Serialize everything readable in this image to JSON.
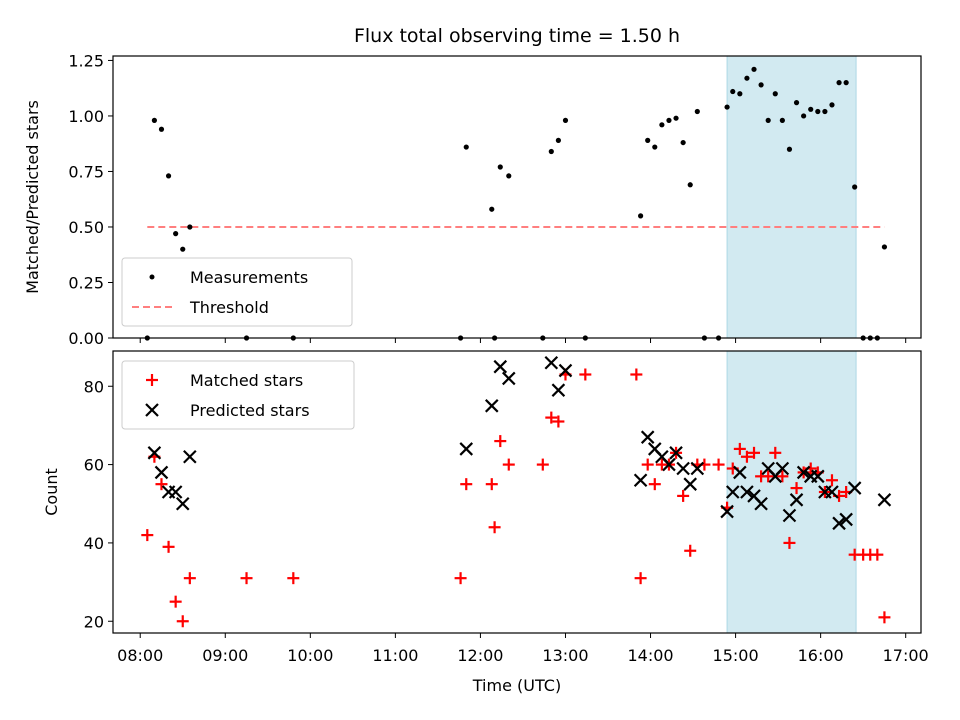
{
  "chart_data": {
    "type": "scatter",
    "title": "Flux total observing time = 1.50 h",
    "xlabel": "Time (UTC)",
    "x_ticks": [
      "08:00",
      "09:00",
      "10:00",
      "11:00",
      "12:00",
      "13:00",
      "14:00",
      "15:00",
      "16:00",
      "17:00"
    ],
    "xlim_hours": [
      7.68,
      17.18
    ],
    "highlight_band": {
      "start": "14:54",
      "end": "16:25",
      "color": "#add8e6"
    },
    "top_panel": {
      "ylabel": "Matched/Predicted stars",
      "ylim": [
        0,
        1.27
      ],
      "y_ticks": [
        "0.00",
        "0.25",
        "0.50",
        "0.75",
        "1.00",
        "1.25"
      ],
      "y_tick_values": [
        0,
        0.25,
        0.5,
        0.75,
        1.0,
        1.25
      ],
      "legend": [
        "Measurements",
        "Threshold"
      ],
      "threshold": {
        "name": "Threshold",
        "value": 0.5,
        "x_start": "08:05",
        "x_end": "16:45",
        "color": "#ff7f7f"
      },
      "measurements": {
        "name": "Measurements",
        "color": "#000000",
        "points": [
          [
            "08:05",
            0.0
          ],
          [
            "08:10",
            0.98
          ],
          [
            "08:15",
            0.94
          ],
          [
            "08:20",
            0.73
          ],
          [
            "08:25",
            0.47
          ],
          [
            "08:30",
            0.4
          ],
          [
            "08:35",
            0.5
          ],
          [
            "09:15",
            0.0
          ],
          [
            "09:48",
            0.0
          ],
          [
            "11:46",
            0.0
          ],
          [
            "11:50",
            0.86
          ],
          [
            "12:08",
            0.58
          ],
          [
            "12:10",
            0.0
          ],
          [
            "12:14",
            0.77
          ],
          [
            "12:20",
            0.73
          ],
          [
            "12:44",
            0.0
          ],
          [
            "12:50",
            0.84
          ],
          [
            "12:55",
            0.89
          ],
          [
            "13:00",
            0.98
          ],
          [
            "13:14",
            0.0
          ],
          [
            "13:53",
            0.55
          ],
          [
            "13:58",
            0.89
          ],
          [
            "14:03",
            0.86
          ],
          [
            "14:08",
            0.96
          ],
          [
            "14:13",
            0.98
          ],
          [
            "14:18",
            0.99
          ],
          [
            "14:23",
            0.88
          ],
          [
            "14:28",
            0.69
          ],
          [
            "14:33",
            1.02
          ],
          [
            "14:38",
            0.0
          ],
          [
            "14:48",
            0.0
          ],
          [
            "14:54",
            1.04
          ],
          [
            "14:58",
            1.11
          ],
          [
            "15:03",
            1.1
          ],
          [
            "15:08",
            1.17
          ],
          [
            "15:13",
            1.21
          ],
          [
            "15:18",
            1.14
          ],
          [
            "15:23",
            0.98
          ],
          [
            "15:28",
            1.1
          ],
          [
            "15:33",
            0.98
          ],
          [
            "15:38",
            0.85
          ],
          [
            "15:43",
            1.06
          ],
          [
            "15:48",
            1.0
          ],
          [
            "15:53",
            1.03
          ],
          [
            "15:58",
            1.02
          ],
          [
            "16:03",
            1.02
          ],
          [
            "16:08",
            1.05
          ],
          [
            "16:13",
            1.15
          ],
          [
            "16:18",
            1.15
          ],
          [
            "16:24",
            0.68
          ],
          [
            "16:30",
            0.0
          ],
          [
            "16:35",
            0.0
          ],
          [
            "16:40",
            0.0
          ],
          [
            "16:45",
            0.41
          ]
        ]
      }
    },
    "bottom_panel": {
      "ylabel": "Count",
      "ylim": [
        17,
        89
      ],
      "y_ticks": [
        "20",
        "40",
        "60",
        "80"
      ],
      "y_tick_values": [
        20,
        40,
        60,
        80
      ],
      "legend": [
        "Matched stars",
        "Predicted stars"
      ],
      "series": [
        {
          "name": "Matched stars",
          "marker": "+",
          "color": "#ff0000",
          "points": [
            [
              "08:05",
              42
            ],
            [
              "08:10",
              62
            ],
            [
              "08:15",
              55
            ],
            [
              "08:20",
              39
            ],
            [
              "08:25",
              25
            ],
            [
              "08:30",
              20
            ],
            [
              "08:35",
              31
            ],
            [
              "09:15",
              31
            ],
            [
              "09:48",
              31
            ],
            [
              "11:46",
              31
            ],
            [
              "11:50",
              55
            ],
            [
              "12:08",
              55
            ],
            [
              "12:10",
              44
            ],
            [
              "12:14",
              66
            ],
            [
              "12:20",
              60
            ],
            [
              "12:44",
              60
            ],
            [
              "12:50",
              72
            ],
            [
              "12:55",
              71
            ],
            [
              "13:00",
              83
            ],
            [
              "13:14",
              83
            ],
            [
              "13:50",
              83
            ],
            [
              "13:53",
              31
            ],
            [
              "13:58",
              60
            ],
            [
              "14:03",
              55
            ],
            [
              "14:08",
              60
            ],
            [
              "14:13",
              60
            ],
            [
              "14:18",
              63
            ],
            [
              "14:23",
              52
            ],
            [
              "14:28",
              38
            ],
            [
              "14:33",
              60
            ],
            [
              "14:38",
              60
            ],
            [
              "14:48",
              60
            ],
            [
              "14:54",
              49
            ],
            [
              "14:58",
              59
            ],
            [
              "15:03",
              64
            ],
            [
              "15:08",
              62
            ],
            [
              "15:13",
              63
            ],
            [
              "15:18",
              57
            ],
            [
              "15:23",
              57
            ],
            [
              "15:28",
              63
            ],
            [
              "15:33",
              57
            ],
            [
              "15:38",
              40
            ],
            [
              "15:43",
              54
            ],
            [
              "15:48",
              58
            ],
            [
              "15:53",
              59
            ],
            [
              "15:58",
              58
            ],
            [
              "16:03",
              53
            ],
            [
              "16:08",
              56
            ],
            [
              "16:13",
              52
            ],
            [
              "16:18",
              53
            ],
            [
              "16:24",
              37
            ],
            [
              "16:30",
              37
            ],
            [
              "16:35",
              37
            ],
            [
              "16:40",
              37
            ],
            [
              "16:45",
              21
            ]
          ]
        },
        {
          "name": "Predicted stars",
          "marker": "x",
          "color": "#000000",
          "points": [
            [
              "08:10",
              63
            ],
            [
              "08:15",
              58
            ],
            [
              "08:20",
              53
            ],
            [
              "08:25",
              53
            ],
            [
              "08:30",
              50
            ],
            [
              "08:35",
              62
            ],
            [
              "11:50",
              64
            ],
            [
              "12:08",
              75
            ],
            [
              "12:14",
              85
            ],
            [
              "12:20",
              82
            ],
            [
              "12:50",
              86
            ],
            [
              "12:55",
              79
            ],
            [
              "13:00",
              84
            ],
            [
              "13:53",
              56
            ],
            [
              "13:58",
              67
            ],
            [
              "14:03",
              64
            ],
            [
              "14:08",
              62
            ],
            [
              "14:13",
              60
            ],
            [
              "14:18",
              63
            ],
            [
              "14:23",
              59
            ],
            [
              "14:28",
              55
            ],
            [
              "14:33",
              59
            ],
            [
              "14:54",
              48
            ],
            [
              "14:58",
              53
            ],
            [
              "15:03",
              58
            ],
            [
              "15:08",
              53
            ],
            [
              "15:13",
              52
            ],
            [
              "15:18",
              50
            ],
            [
              "15:23",
              59
            ],
            [
              "15:28",
              57
            ],
            [
              "15:33",
              59
            ],
            [
              "15:38",
              47
            ],
            [
              "15:43",
              51
            ],
            [
              "15:48",
              58
            ],
            [
              "15:53",
              57
            ],
            [
              "15:58",
              57
            ],
            [
              "16:03",
              53
            ],
            [
              "16:08",
              53
            ],
            [
              "16:13",
              45
            ],
            [
              "16:18",
              46
            ],
            [
              "16:24",
              54
            ],
            [
              "16:45",
              51
            ]
          ]
        }
      ]
    }
  }
}
